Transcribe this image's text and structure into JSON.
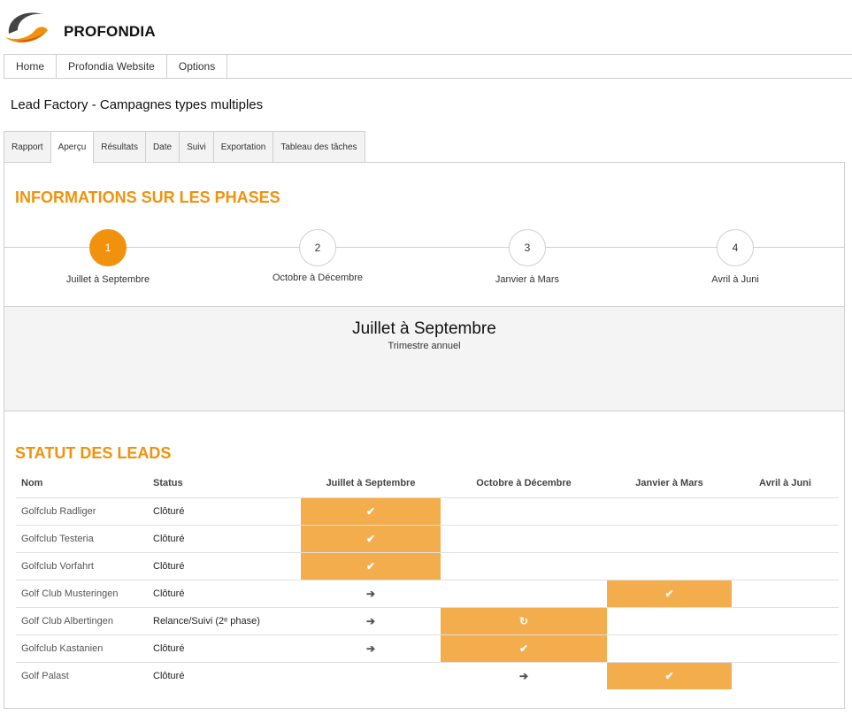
{
  "brand": {
    "name": "PROFONDIA"
  },
  "nav": [
    {
      "label": "Home"
    },
    {
      "label": "Profondia Website"
    },
    {
      "label": "Options"
    }
  ],
  "page": {
    "title": "Lead Factory - Campagnes types multiples"
  },
  "tabs": [
    {
      "label": "Rapport"
    },
    {
      "label": "Aperçu",
      "active": true
    },
    {
      "label": "Résultats"
    },
    {
      "label": "Date"
    },
    {
      "label": "Suivi"
    },
    {
      "label": "Exportation"
    },
    {
      "label": "Tableau des tâches"
    }
  ],
  "phases_section": {
    "title": "INFORMATIONS SUR LES PHASES",
    "phases": [
      {
        "number": "1",
        "label": "Juillet à Septembre",
        "active": true
      },
      {
        "number": "2",
        "label": "Octobre à Décembre"
      },
      {
        "number": "3",
        "label": "Janvier à Mars"
      },
      {
        "number": "4",
        "label": "Avril à Juni"
      }
    ],
    "detail": {
      "title": "Juillet à Septembre",
      "subtitle": "Trimestre annuel"
    }
  },
  "leads_section": {
    "title": "STATUT DES LEADS",
    "columns": [
      "Nom",
      "Status",
      "Juillet à Septembre",
      "Octobre à Décembre",
      "Janvier à Mars",
      "Avril à Juni"
    ],
    "rows": [
      {
        "name": "Golfclub Radliger",
        "status": "Clôturé",
        "cells": [
          "check",
          "",
          "",
          ""
        ]
      },
      {
        "name": "Golfclub Testeria",
        "status": "Clôturé",
        "cells": [
          "check",
          "",
          "",
          ""
        ]
      },
      {
        "name": "Golfclub Vorfahrt",
        "status": "Clôturé",
        "cells": [
          "check",
          "",
          "",
          ""
        ]
      },
      {
        "name": "Golf Club Musteringen",
        "status": "Clôturé",
        "cells": [
          "arrow",
          "",
          "check",
          ""
        ]
      },
      {
        "name": "Golf Club Albertingen",
        "status": "Relance/Suivi (2ᵉ phase)",
        "cells": [
          "arrow",
          "refresh",
          "",
          ""
        ]
      },
      {
        "name": "Golfclub Kastanien",
        "status": "Clôturé",
        "cells": [
          "arrow",
          "check",
          "",
          ""
        ]
      },
      {
        "name": "Golf Palast",
        "status": "Clôturé",
        "cells": [
          "",
          "arrow",
          "check",
          ""
        ]
      }
    ]
  },
  "icons": {
    "check": "check-icon",
    "arrow": "arrow-right-icon",
    "refresh": "refresh-icon"
  },
  "colors": {
    "accent": "#f0920e",
    "highlight": "#f4ad4c"
  }
}
